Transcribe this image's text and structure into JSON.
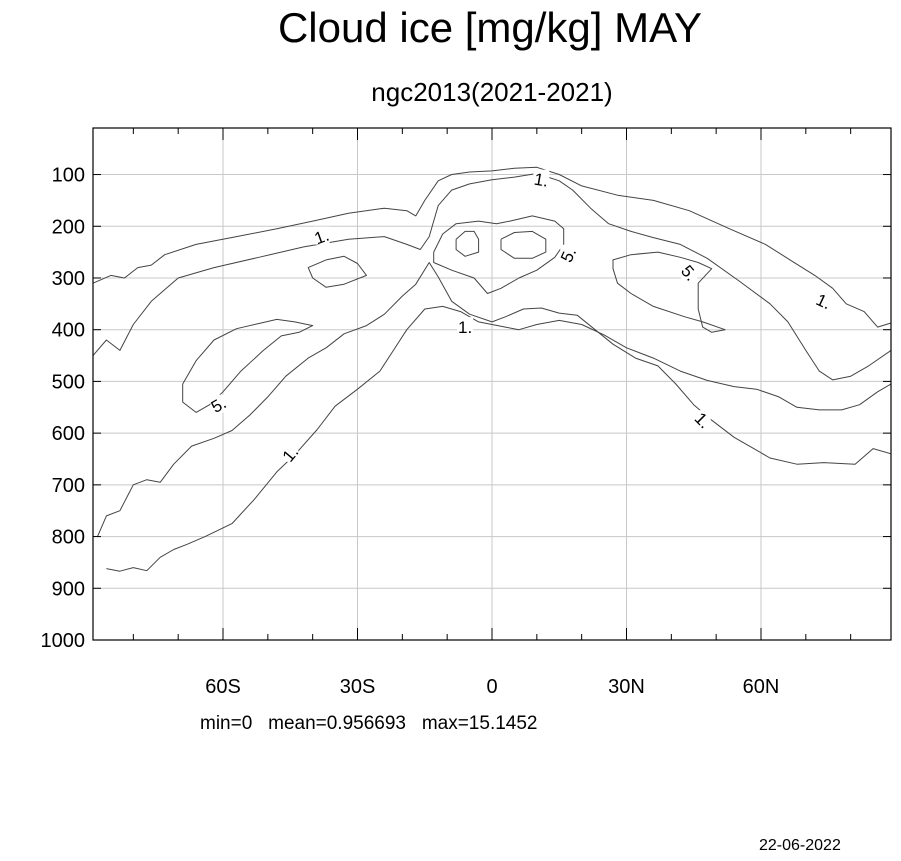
{
  "chart_data": {
    "type": "contour",
    "title": "Cloud ice [mg/kg] MAY",
    "subtitle": "ngc2013(2021-2021)",
    "x_tick_labels": [
      "60S",
      "30S",
      "0",
      "30N",
      "60N"
    ],
    "x_tick_values": [
      -60,
      -30,
      0,
      30,
      60
    ],
    "y_tick_labels": [
      "100",
      "200",
      "300",
      "400",
      "500",
      "600",
      "700",
      "800",
      "900",
      "1000"
    ],
    "y_tick_values": [
      100,
      200,
      300,
      400,
      500,
      600,
      700,
      800,
      900,
      1000
    ],
    "xlim": [
      -89,
      89
    ],
    "ylim": [
      1000,
      10
    ],
    "grid": true,
    "contour_levels": [
      1,
      5
    ],
    "contour_labels": [
      {
        "text": "1.",
        "x": 11,
        "y": 110,
        "rotate": 10
      },
      {
        "text": "1.",
        "x": -38,
        "y": 220,
        "rotate": -20
      },
      {
        "text": "5.",
        "x": 17,
        "y": 255,
        "rotate": -65
      },
      {
        "text": "5.",
        "x": 44,
        "y": 290,
        "rotate": 50
      },
      {
        "text": "1.",
        "x": 74,
        "y": 345,
        "rotate": 25
      },
      {
        "text": "1.",
        "x": -6,
        "y": 395,
        "rotate": 0
      },
      {
        "text": "5.",
        "x": -61,
        "y": 545,
        "rotate": -30
      },
      {
        "text": "1.",
        "x": 47,
        "y": 575,
        "rotate": 45
      },
      {
        "text": "1.",
        "x": -45,
        "y": 640,
        "rotate": -50
      }
    ],
    "contours": [
      {
        "level": 1,
        "points": [
          [
            -89,
            310
          ],
          [
            -85,
            295
          ],
          [
            -82,
            300
          ],
          [
            -79,
            280
          ],
          [
            -76,
            275
          ],
          [
            -73,
            255
          ],
          [
            -66,
            235
          ],
          [
            -57,
            220
          ],
          [
            -48,
            205
          ],
          [
            -40,
            190
          ],
          [
            -32,
            175
          ],
          [
            -24,
            165
          ],
          [
            -19,
            170
          ],
          [
            -17,
            180
          ],
          [
            -15,
            150
          ],
          [
            -12,
            112
          ],
          [
            -9,
            100
          ],
          [
            -5,
            95
          ],
          [
            0,
            93
          ],
          [
            5,
            88
          ],
          [
            10,
            86
          ],
          [
            15,
            100
          ],
          [
            20,
            122
          ],
          [
            28,
            140
          ],
          [
            36,
            150
          ],
          [
            44,
            170
          ],
          [
            53,
            205
          ],
          [
            61,
            235
          ],
          [
            67,
            268
          ],
          [
            72,
            295
          ],
          [
            76,
            320
          ],
          [
            79,
            350
          ],
          [
            83,
            365
          ],
          [
            86,
            395
          ],
          [
            89,
            387
          ]
        ]
      },
      {
        "level": 1,
        "points": [
          [
            -89,
            450
          ],
          [
            -86,
            420
          ],
          [
            -83,
            440
          ],
          [
            -80,
            390
          ],
          [
            -76,
            345
          ],
          [
            -70,
            300
          ],
          [
            -62,
            280
          ],
          [
            -52,
            260
          ],
          [
            -42,
            240
          ],
          [
            -32,
            225
          ],
          [
            -24,
            220
          ],
          [
            -19,
            235
          ],
          [
            -16,
            245
          ],
          [
            -14,
            220
          ],
          [
            -12,
            160
          ],
          [
            -9,
            130
          ],
          [
            -5,
            118
          ],
          [
            0,
            110
          ],
          [
            5,
            105
          ],
          [
            10,
            98
          ],
          [
            15,
            112
          ],
          [
            18,
            130
          ],
          [
            22,
            165
          ],
          [
            26,
            195
          ],
          [
            31,
            210
          ],
          [
            36,
            222
          ],
          [
            42,
            235
          ],
          [
            48,
            262
          ],
          [
            55,
            305
          ],
          [
            62,
            350
          ],
          [
            66,
            385
          ],
          [
            70,
            440
          ],
          [
            73,
            480
          ],
          [
            76,
            497
          ],
          [
            80,
            490
          ],
          [
            84,
            470
          ],
          [
            89,
            440
          ]
        ]
      },
      {
        "level": 1,
        "points": [
          [
            -88,
            800
          ],
          [
            -86,
            760
          ],
          [
            -83,
            750
          ],
          [
            -80,
            700
          ],
          [
            -77,
            690
          ],
          [
            -74,
            695
          ],
          [
            -71,
            660
          ],
          [
            -67,
            625
          ],
          [
            -62,
            610
          ],
          [
            -58,
            595
          ],
          [
            -54,
            565
          ],
          [
            -50,
            530
          ],
          [
            -46,
            490
          ],
          [
            -41,
            455
          ],
          [
            -37,
            435
          ],
          [
            -33,
            408
          ],
          [
            -28,
            392
          ],
          [
            -24,
            370
          ],
          [
            -20,
            335
          ],
          [
            -17,
            312
          ],
          [
            -14,
            270
          ],
          [
            -12,
            298
          ],
          [
            -9,
            345
          ],
          [
            -5,
            370
          ],
          [
            0,
            385
          ],
          [
            3,
            375
          ],
          [
            7,
            360
          ],
          [
            11,
            358
          ],
          [
            15,
            368
          ],
          [
            19,
            372
          ],
          [
            23,
            400
          ],
          [
            27,
            428
          ],
          [
            32,
            455
          ],
          [
            37,
            470
          ],
          [
            41,
            505
          ],
          [
            45,
            545
          ],
          [
            49,
            575
          ],
          [
            54,
            608
          ],
          [
            58,
            628
          ],
          [
            62,
            648
          ],
          [
            68,
            660
          ],
          [
            74,
            657
          ],
          [
            81,
            660
          ],
          [
            85,
            630
          ],
          [
            89,
            640
          ]
        ]
      },
      {
        "level": 1,
        "points": [
          [
            -86,
            862
          ],
          [
            -83,
            867
          ],
          [
            -80,
            860
          ],
          [
            -77,
            866
          ],
          [
            -74,
            840
          ],
          [
            -71,
            825
          ],
          [
            -68,
            815
          ],
          [
            -64,
            800
          ],
          [
            -58,
            775
          ],
          [
            -53,
            728
          ],
          [
            -48,
            675
          ],
          [
            -44,
            642
          ],
          [
            -39,
            593
          ],
          [
            -35,
            548
          ],
          [
            -30,
            515
          ],
          [
            -25,
            480
          ],
          [
            -22,
            440
          ],
          [
            -19,
            400
          ],
          [
            -15,
            360
          ],
          [
            -11,
            355
          ],
          [
            -7,
            365
          ],
          [
            -3,
            385
          ],
          [
            0,
            390
          ],
          [
            3,
            395
          ],
          [
            6,
            400
          ],
          [
            10,
            390
          ],
          [
            15,
            382
          ],
          [
            20,
            390
          ],
          [
            25,
            410
          ],
          [
            30,
            435
          ],
          [
            36,
            455
          ],
          [
            42,
            480
          ],
          [
            48,
            498
          ],
          [
            54,
            510
          ],
          [
            59,
            515
          ],
          [
            64,
            530
          ],
          [
            68,
            550
          ],
          [
            73,
            555
          ],
          [
            78,
            555
          ],
          [
            82,
            545
          ],
          [
            86,
            520
          ],
          [
            89,
            505
          ]
        ]
      },
      {
        "level": 5,
        "points": [
          [
            -69,
            505
          ],
          [
            -66,
            460
          ],
          [
            -62,
            420
          ],
          [
            -57,
            398
          ],
          [
            -52,
            388
          ],
          [
            -48,
            380
          ],
          [
            -44,
            385
          ],
          [
            -40,
            392
          ],
          [
            -43,
            405
          ],
          [
            -47,
            412
          ],
          [
            -51,
            440
          ],
          [
            -56,
            480
          ],
          [
            -60,
            520
          ],
          [
            -63,
            545
          ],
          [
            -66,
            560
          ],
          [
            -69,
            540
          ],
          [
            -69,
            505
          ]
        ]
      },
      {
        "level": 5,
        "points": [
          [
            -37,
            265
          ],
          [
            -33,
            258
          ],
          [
            -30,
            272
          ],
          [
            -28,
            295
          ],
          [
            -33,
            312
          ],
          [
            -37,
            318
          ],
          [
            -40,
            300
          ],
          [
            -41,
            280
          ],
          [
            -37,
            265
          ]
        ]
      },
      {
        "level": 5,
        "points": [
          [
            -8,
            225
          ],
          [
            -6,
            210
          ],
          [
            -4,
            210
          ],
          [
            -3,
            225
          ],
          [
            -3,
            250
          ],
          [
            -6,
            258
          ],
          [
            -8,
            245
          ],
          [
            -8,
            225
          ]
        ]
      },
      {
        "level": 5,
        "points": [
          [
            2,
            225
          ],
          [
            5,
            212
          ],
          [
            9,
            210
          ],
          [
            12,
            225
          ],
          [
            12,
            250
          ],
          [
            9,
            262
          ],
          [
            5,
            262
          ],
          [
            2,
            245
          ],
          [
            2,
            225
          ]
        ]
      },
      {
        "level": 5,
        "points": [
          [
            -13,
            250
          ],
          [
            -11,
            215
          ],
          [
            -8,
            195
          ],
          [
            -3,
            190
          ],
          [
            1,
            195
          ],
          [
            4,
            190
          ],
          [
            9,
            180
          ],
          [
            14,
            190
          ],
          [
            16,
            205
          ],
          [
            16,
            235
          ],
          [
            14,
            260
          ],
          [
            10,
            285
          ],
          [
            6,
            300
          ],
          [
            2,
            320
          ],
          [
            -1,
            330
          ],
          [
            -4,
            300
          ],
          [
            -9,
            285
          ],
          [
            -13,
            270
          ],
          [
            -13,
            250
          ]
        ]
      },
      {
        "level": 5,
        "points": [
          [
            27,
            282
          ],
          [
            27,
            265
          ],
          [
            31,
            255
          ],
          [
            37,
            250
          ],
          [
            42,
            260
          ],
          [
            46,
            270
          ],
          [
            49,
            282
          ],
          [
            46,
            310
          ],
          [
            46,
            360
          ],
          [
            47,
            395
          ],
          [
            49,
            405
          ],
          [
            52,
            400
          ],
          [
            47,
            385
          ],
          [
            43,
            375
          ],
          [
            36,
            355
          ],
          [
            31,
            330
          ],
          [
            28,
            310
          ],
          [
            27,
            282
          ]
        ]
      }
    ]
  },
  "stats_text": "min=0   mean=0.956693   max=15.1452",
  "date_text": "22-06-2022"
}
